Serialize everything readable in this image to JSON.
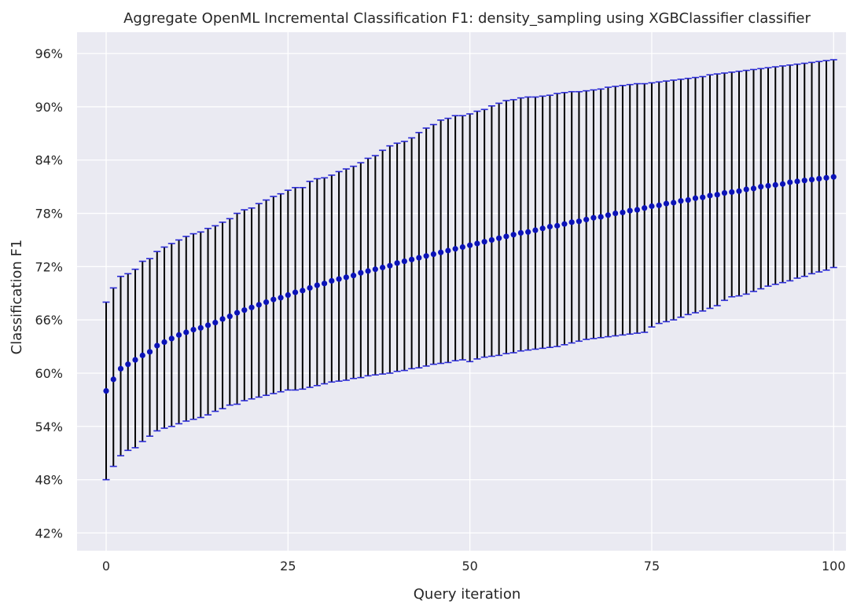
{
  "chart_data": {
    "type": "scatter",
    "title": "Aggregate OpenML Incremental Classification F1: density_sampling using XGBClassifier classifier",
    "xlabel": "Query iteration",
    "ylabel": "Classification F1",
    "xlim": [
      -4,
      101.7
    ],
    "ylim": [
      40.0,
      98.4
    ],
    "x_ticks": [
      0,
      25,
      50,
      75,
      100
    ],
    "y_ticks": [
      42,
      48,
      54,
      60,
      66,
      72,
      78,
      84,
      90,
      96
    ],
    "y_tick_labels": [
      "42%",
      "48%",
      "54%",
      "60%",
      "66%",
      "72%",
      "78%",
      "84%",
      "90%",
      "96%"
    ],
    "grid": true,
    "series": [
      {
        "x": [
          0,
          1,
          2,
          3,
          4,
          5,
          6,
          7,
          8,
          9,
          10,
          11,
          12,
          13,
          14,
          15,
          16,
          17,
          18,
          19,
          20,
          21,
          22,
          23,
          24,
          25,
          26,
          27,
          28,
          29,
          30,
          31,
          32,
          33,
          34,
          35,
          36,
          37,
          38,
          39,
          40,
          41,
          42,
          43,
          44,
          45,
          46,
          47,
          48,
          49,
          50,
          51,
          52,
          53,
          54,
          55,
          56,
          57,
          58,
          59,
          60,
          61,
          62,
          63,
          64,
          65,
          66,
          67,
          68,
          69,
          70,
          71,
          72,
          73,
          74,
          75,
          76,
          77,
          78,
          79,
          80,
          81,
          82,
          83,
          84,
          85,
          86,
          87,
          88,
          89,
          90,
          91,
          92,
          93,
          94,
          95,
          96,
          97,
          98,
          99,
          100
        ],
        "mean": [
          58.0,
          59.3,
          60.5,
          61.0,
          61.5,
          62.0,
          62.4,
          63.1,
          63.5,
          63.9,
          64.3,
          64.6,
          64.9,
          65.1,
          65.4,
          65.7,
          66.1,
          66.4,
          66.8,
          67.1,
          67.4,
          67.7,
          68.0,
          68.3,
          68.5,
          68.8,
          69.1,
          69.3,
          69.6,
          69.9,
          70.1,
          70.4,
          70.6,
          70.8,
          71.0,
          71.3,
          71.5,
          71.7,
          71.9,
          72.1,
          72.4,
          72.6,
          72.8,
          73.0,
          73.2,
          73.4,
          73.6,
          73.8,
          74.0,
          74.2,
          74.4,
          74.6,
          74.8,
          75.0,
          75.2,
          75.4,
          75.6,
          75.8,
          75.9,
          76.1,
          76.3,
          76.5,
          76.6,
          76.8,
          77.0,
          77.1,
          77.3,
          77.5,
          77.6,
          77.8,
          78.0,
          78.1,
          78.3,
          78.4,
          78.6,
          78.8,
          78.9,
          79.1,
          79.2,
          79.4,
          79.5,
          79.7,
          79.8,
          80.0,
          80.1,
          80.3,
          80.4,
          80.5,
          80.7,
          80.8,
          81.0,
          81.1,
          81.2,
          81.3,
          81.5,
          81.6,
          81.7,
          81.8,
          81.9,
          82.0,
          82.1
        ],
        "lower": [
          48.0,
          49.5,
          50.7,
          51.3,
          51.6,
          52.3,
          52.9,
          53.5,
          53.8,
          54.0,
          54.3,
          54.6,
          54.8,
          55.0,
          55.3,
          55.7,
          56.0,
          56.4,
          56.5,
          56.9,
          57.1,
          57.3,
          57.5,
          57.7,
          57.9,
          58.1,
          58.1,
          58.2,
          58.4,
          58.6,
          58.8,
          59.0,
          59.1,
          59.2,
          59.4,
          59.5,
          59.7,
          59.8,
          59.9,
          60.0,
          60.2,
          60.3,
          60.5,
          60.6,
          60.8,
          61.0,
          61.1,
          61.2,
          61.4,
          61.5,
          61.3,
          61.6,
          61.8,
          61.9,
          62.0,
          62.2,
          62.3,
          62.5,
          62.6,
          62.7,
          62.8,
          62.9,
          63.0,
          63.2,
          63.4,
          63.6,
          63.8,
          63.9,
          64.0,
          64.1,
          64.2,
          64.3,
          64.4,
          64.5,
          64.6,
          65.2,
          65.6,
          65.8,
          66.0,
          66.3,
          66.6,
          66.8,
          67.0,
          67.3,
          67.6,
          68.2,
          68.6,
          68.7,
          68.9,
          69.2,
          69.5,
          69.8,
          70.0,
          70.2,
          70.4,
          70.7,
          70.9,
          71.2,
          71.4,
          71.6,
          71.9
        ],
        "upper": [
          68.0,
          69.6,
          70.9,
          71.2,
          71.7,
          72.6,
          72.9,
          73.7,
          74.2,
          74.6,
          75.0,
          75.4,
          75.7,
          75.9,
          76.3,
          76.6,
          77.0,
          77.4,
          78.0,
          78.4,
          78.6,
          79.1,
          79.5,
          79.9,
          80.2,
          80.6,
          80.9,
          80.9,
          81.6,
          81.9,
          82.0,
          82.3,
          82.7,
          83.0,
          83.3,
          83.7,
          84.2,
          84.5,
          85.1,
          85.6,
          85.9,
          86.1,
          86.5,
          87.1,
          87.6,
          88.0,
          88.5,
          88.7,
          89.0,
          89.0,
          89.2,
          89.5,
          89.7,
          90.1,
          90.4,
          90.7,
          90.8,
          91.0,
          91.1,
          91.1,
          91.2,
          91.3,
          91.5,
          91.6,
          91.7,
          91.7,
          91.8,
          91.9,
          92.0,
          92.2,
          92.3,
          92.4,
          92.5,
          92.6,
          92.6,
          92.7,
          92.8,
          92.9,
          93.0,
          93.1,
          93.2,
          93.3,
          93.4,
          93.6,
          93.7,
          93.8,
          93.9,
          94.0,
          94.1,
          94.2,
          94.3,
          94.4,
          94.5,
          94.6,
          94.7,
          94.8,
          94.9,
          95.0,
          95.1,
          95.2,
          95.3
        ]
      }
    ]
  },
  "colors": {
    "background": "#eaeaf2",
    "point": "#0b12b8",
    "error_bar": "#000000",
    "cap": "#2a2ad6"
  }
}
